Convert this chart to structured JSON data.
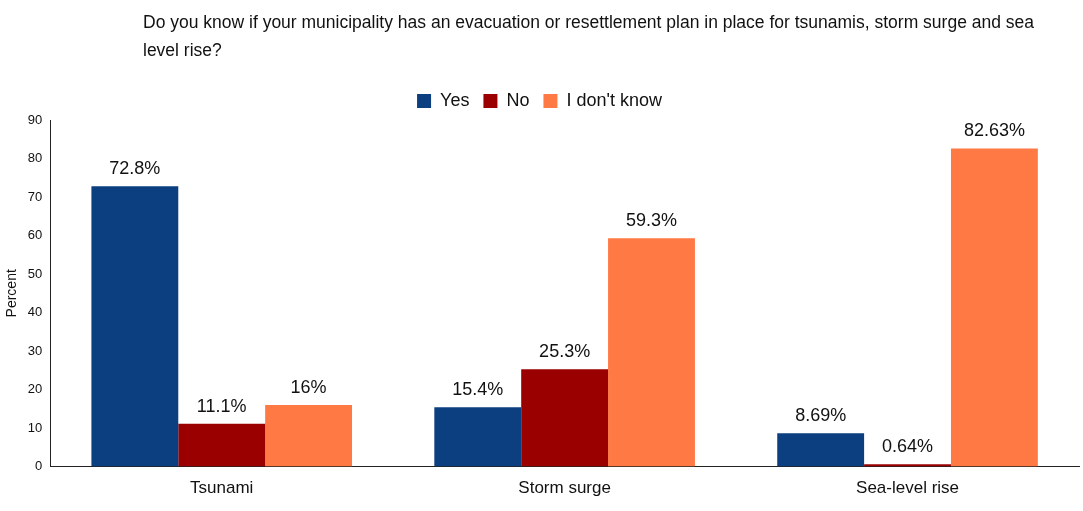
{
  "chart_data": {
    "type": "bar",
    "title": "Do you know if your municipality has an evacuation or resettlement plan in place for tsunamis, storm surge and sea level rise?",
    "ylabel": "Percent",
    "categories": [
      "Tsunami",
      "Storm surge",
      "Sea-level rise"
    ],
    "series": [
      {
        "name": "Yes",
        "color": "#0b3f7f",
        "values": [
          72.8,
          15.4,
          8.69
        ],
        "value_labels": [
          "72.8%",
          "15.4%",
          "8.69%"
        ]
      },
      {
        "name": "No",
        "color": "#9b0000",
        "values": [
          11.1,
          25.3,
          0.64
        ],
        "value_labels": [
          "11.1%",
          "25.3%",
          "0.64%"
        ]
      },
      {
        "name": "I don't know",
        "color": "#ff7944",
        "values": [
          16,
          59.3,
          82.63
        ],
        "value_labels": [
          "16%",
          "59.3%",
          "82.63%"
        ]
      }
    ],
    "ylim": [
      0,
      90
    ],
    "yticks": [
      0,
      10,
      20,
      30,
      40,
      50,
      60,
      70,
      80,
      90
    ],
    "grid": false,
    "legend": "top"
  }
}
